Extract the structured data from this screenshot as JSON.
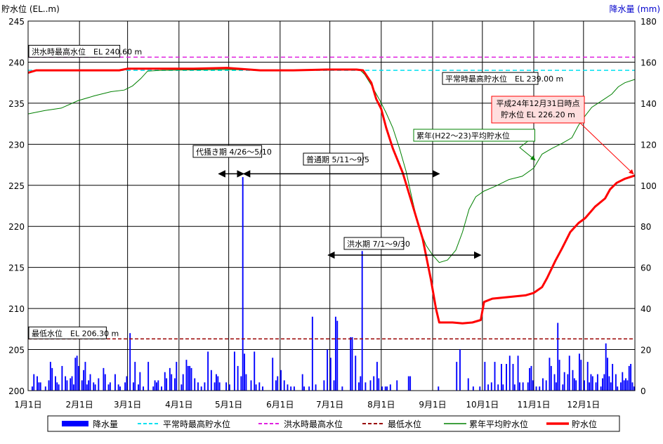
{
  "chart_data": {
    "type": "bar+line",
    "left_axis_title": "貯水位 (EL..m)",
    "right_axis_title": "降水量 (mm)",
    "y_left": {
      "min": 200,
      "max": 245,
      "ticks": [
        200,
        205,
        210,
        215,
        220,
        225,
        230,
        235,
        240,
        245
      ]
    },
    "y_right": {
      "min": 0,
      "max": 180,
      "ticks": [
        0,
        20,
        40,
        60,
        80,
        100,
        120,
        140,
        160,
        180
      ]
    },
    "x_range_days": [
      0,
      366
    ],
    "month_ticks": [
      {
        "day": 0,
        "label": "1月1日"
      },
      {
        "day": 31,
        "label": "2月1日"
      },
      {
        "day": 60,
        "label": "3月1日"
      },
      {
        "day": 91,
        "label": "4月1日"
      },
      {
        "day": 121,
        "label": "5月1日"
      },
      {
        "day": 152,
        "label": "6月1日"
      },
      {
        "day": 182,
        "label": "7月1日"
      },
      {
        "day": 213,
        "label": "8月1日"
      },
      {
        "day": 244,
        "label": "9月1日"
      },
      {
        "day": 274,
        "label": "10月1日"
      },
      {
        "day": 305,
        "label": "11月1日"
      },
      {
        "day": 335,
        "label": "12月1日"
      }
    ],
    "reference_lines": [
      {
        "name": "洪水時最高水位",
        "value": 240.6,
        "color": "#e020e0",
        "dash": "6,4",
        "label": "洪水時最高水位　EL 240.60 m"
      },
      {
        "name": "平常時最高貯水位",
        "value": 239.0,
        "color": "#00e0f0",
        "dash": "6,4",
        "label": "平常時最高貯水位　EL 239.00 m"
      },
      {
        "name": "最低水位",
        "value": 206.3,
        "color": "#990000",
        "dash": "5,3",
        "label": "最低水位　EL 206.30 m"
      }
    ],
    "periods": [
      {
        "label": "代掻き期 4/26～5/10",
        "start_day": 115,
        "end_day": 130
      },
      {
        "label": "普通期 5/11～9/5",
        "start_day": 130,
        "end_day": 248
      },
      {
        "label": "洪水期 7/1～9/30",
        "start_day": 181,
        "end_day": 273
      }
    ],
    "annotations": [
      {
        "text_lines": [
          "平成24年12月31日時点",
          "貯水位 EL 226.20 m"
        ],
        "value": 226.2
      },
      {
        "text_lines": [
          "累年(H22～23)平均貯水位"
        ]
      }
    ],
    "series": [
      {
        "name": "貯水位",
        "type": "line",
        "color": "#ff0000",
        "axis": "left",
        "points": [
          [
            0,
            238.7
          ],
          [
            5,
            239.0
          ],
          [
            20,
            239.0
          ],
          [
            55,
            239.0
          ],
          [
            60,
            239.2
          ],
          [
            100,
            239.2
          ],
          [
            120,
            239.3
          ],
          [
            140,
            239.0
          ],
          [
            160,
            239.0
          ],
          [
            180,
            239.1
          ],
          [
            198,
            239.1
          ],
          [
            202,
            239.0
          ],
          [
            207,
            237.5
          ],
          [
            210,
            235.5
          ],
          [
            213,
            234.3
          ],
          [
            216,
            232.0
          ],
          [
            220,
            229.5
          ],
          [
            226,
            226.5
          ],
          [
            232,
            222.5
          ],
          [
            238,
            218.5
          ],
          [
            243,
            213.5
          ],
          [
            246,
            210.0
          ],
          [
            248,
            208.3
          ],
          [
            256,
            208.3
          ],
          [
            262,
            208.2
          ],
          [
            268,
            208.3
          ],
          [
            273,
            208.6
          ],
          [
            275,
            210.8
          ],
          [
            280,
            211.2
          ],
          [
            290,
            211.4
          ],
          [
            300,
            211.6
          ],
          [
            305,
            211.9
          ],
          [
            310,
            212.6
          ],
          [
            313,
            213.7
          ],
          [
            318,
            215.8
          ],
          [
            322,
            217.3
          ],
          [
            327,
            219.3
          ],
          [
            332,
            220.4
          ],
          [
            336,
            221.0
          ],
          [
            342,
            222.4
          ],
          [
            348,
            223.4
          ],
          [
            351,
            224.5
          ],
          [
            355,
            225.3
          ],
          [
            360,
            225.8
          ],
          [
            366,
            226.2
          ]
        ]
      },
      {
        "name": "累年平均貯水位",
        "type": "line",
        "color": "#008000",
        "axis": "left",
        "points": [
          [
            0,
            233.7
          ],
          [
            10,
            234.1
          ],
          [
            20,
            234.4
          ],
          [
            30,
            235.3
          ],
          [
            40,
            235.9
          ],
          [
            50,
            236.4
          ],
          [
            58,
            236.6
          ],
          [
            63,
            237.1
          ],
          [
            68,
            238.0
          ],
          [
            72,
            238.9
          ],
          [
            80,
            239.0
          ],
          [
            120,
            239.1
          ],
          [
            150,
            239.0
          ],
          [
            180,
            239.1
          ],
          [
            200,
            239.1
          ],
          [
            203,
            238.5
          ],
          [
            207,
            237.2
          ],
          [
            212,
            235.4
          ],
          [
            216,
            233.8
          ],
          [
            220,
            232.0
          ],
          [
            224,
            229.5
          ],
          [
            228,
            226.7
          ],
          [
            232,
            223.0
          ],
          [
            236,
            219.7
          ],
          [
            240,
            217.7
          ],
          [
            244,
            216.5
          ],
          [
            248,
            215.6
          ],
          [
            253,
            215.9
          ],
          [
            258,
            217.1
          ],
          [
            262,
            219.3
          ],
          [
            266,
            222.1
          ],
          [
            270,
            223.6
          ],
          [
            275,
            224.3
          ],
          [
            282,
            224.9
          ],
          [
            290,
            225.7
          ],
          [
            298,
            226.1
          ],
          [
            305,
            227.1
          ],
          [
            310,
            228.8
          ],
          [
            316,
            229.5
          ],
          [
            322,
            230.1
          ],
          [
            328,
            230.8
          ],
          [
            332,
            232.3
          ],
          [
            335,
            233.2
          ],
          [
            340,
            234.5
          ],
          [
            346,
            235.3
          ],
          [
            352,
            236.1
          ],
          [
            356,
            237.0
          ],
          [
            360,
            237.5
          ],
          [
            366,
            237.9
          ]
        ]
      },
      {
        "name": "降水量",
        "type": "bar",
        "color": "#0000ff",
        "axis": "right",
        "points": [
          [
            2,
            2
          ],
          [
            3,
            8
          ],
          [
            5,
            7
          ],
          [
            6,
            4
          ],
          [
            7,
            4
          ],
          [
            10,
            2
          ],
          [
            12,
            5
          ],
          [
            13,
            14
          ],
          [
            14,
            11
          ],
          [
            16,
            7
          ],
          [
            17,
            4
          ],
          [
            18,
            3
          ],
          [
            20,
            12
          ],
          [
            22,
            7
          ],
          [
            23,
            5
          ],
          [
            25,
            6
          ],
          [
            26,
            7
          ],
          [
            27,
            3
          ],
          [
            28,
            16
          ],
          [
            29,
            17
          ],
          [
            30,
            12
          ],
          [
            32,
            5
          ],
          [
            33,
            10
          ],
          [
            34,
            14
          ],
          [
            35,
            3
          ],
          [
            36,
            5
          ],
          [
            37,
            8
          ],
          [
            39,
            4
          ],
          [
            40,
            3
          ],
          [
            42,
            6
          ],
          [
            45,
            11
          ],
          [
            46,
            8
          ],
          [
            48,
            3
          ],
          [
            49,
            4
          ],
          [
            52,
            8
          ],
          [
            54,
            3
          ],
          [
            55,
            2
          ],
          [
            58,
            4
          ],
          [
            59,
            7
          ],
          [
            61,
            28
          ],
          [
            63,
            4
          ],
          [
            64,
            14
          ],
          [
            66,
            3
          ],
          [
            67,
            9
          ],
          [
            69,
            2
          ],
          [
            72,
            14
          ],
          [
            75,
            2
          ],
          [
            76,
            5
          ],
          [
            77,
            4
          ],
          [
            78,
            5
          ],
          [
            80,
            2
          ],
          [
            82,
            9
          ],
          [
            83,
            6
          ],
          [
            85,
            11
          ],
          [
            86,
            8
          ],
          [
            88,
            6
          ],
          [
            89,
            14
          ],
          [
            92,
            3
          ],
          [
            93,
            8
          ],
          [
            95,
            15
          ],
          [
            96,
            12
          ],
          [
            97,
            12
          ],
          [
            98,
            11
          ],
          [
            100,
            6
          ],
          [
            102,
            4
          ],
          [
            104,
            2
          ],
          [
            106,
            4
          ],
          [
            108,
            19
          ],
          [
            110,
            10
          ],
          [
            112,
            4
          ],
          [
            113,
            8
          ],
          [
            114,
            7
          ],
          [
            115,
            4
          ],
          [
            119,
            4
          ],
          [
            121,
            3
          ],
          [
            124,
            19
          ],
          [
            126,
            12
          ],
          [
            128,
            7
          ],
          [
            129,
            104
          ],
          [
            130,
            18
          ],
          [
            131,
            8
          ],
          [
            134,
            5
          ],
          [
            136,
            19
          ],
          [
            137,
            3
          ],
          [
            139,
            4
          ],
          [
            141,
            2
          ],
          [
            147,
            16
          ],
          [
            149,
            5
          ],
          [
            150,
            7
          ],
          [
            152,
            10
          ],
          [
            154,
            5
          ],
          [
            156,
            3
          ],
          [
            158,
            2
          ],
          [
            160,
            2
          ],
          [
            165,
            8
          ],
          [
            166,
            2
          ],
          [
            169,
            2
          ],
          [
            171,
            36
          ],
          [
            173,
            3
          ],
          [
            178,
            5
          ],
          [
            180,
            20
          ],
          [
            182,
            16
          ],
          [
            184,
            5
          ],
          [
            185,
            36
          ],
          [
            186,
            34
          ],
          [
            189,
            2
          ],
          [
            194,
            26
          ],
          [
            195,
            26
          ],
          [
            197,
            17
          ],
          [
            199,
            4
          ],
          [
            200,
            7
          ],
          [
            201,
            68
          ],
          [
            203,
            4
          ],
          [
            206,
            5
          ],
          [
            208,
            7
          ],
          [
            210,
            14
          ],
          [
            211,
            6
          ],
          [
            213,
            2
          ],
          [
            215,
            2
          ],
          [
            216,
            2
          ],
          [
            218,
            3
          ],
          [
            222,
            5
          ],
          [
            229,
            7
          ],
          [
            230,
            7
          ],
          [
            247,
            2
          ],
          [
            258,
            14
          ],
          [
            260,
            20
          ],
          [
            265,
            6
          ],
          [
            268,
            2
          ],
          [
            272,
            2
          ],
          [
            275,
            14
          ],
          [
            277,
            3
          ],
          [
            279,
            4
          ],
          [
            281,
            14
          ],
          [
            283,
            3
          ],
          [
            285,
            13
          ],
          [
            286,
            3
          ],
          [
            288,
            13
          ],
          [
            290,
            17
          ],
          [
            292,
            13
          ],
          [
            293,
            3
          ],
          [
            295,
            17
          ],
          [
            296,
            4
          ],
          [
            298,
            4
          ],
          [
            301,
            4
          ],
          [
            302,
            11
          ],
          [
            303,
            12
          ],
          [
            304,
            5
          ],
          [
            306,
            2
          ],
          [
            308,
            2
          ],
          [
            310,
            6
          ],
          [
            312,
            5
          ],
          [
            314,
            16
          ],
          [
            315,
            12
          ],
          [
            317,
            8
          ],
          [
            318,
            4
          ],
          [
            319,
            33
          ],
          [
            320,
            15
          ],
          [
            322,
            3
          ],
          [
            323,
            9
          ],
          [
            325,
            8
          ],
          [
            326,
            17
          ],
          [
            328,
            10
          ],
          [
            329,
            6
          ],
          [
            330,
            5
          ],
          [
            332,
            18
          ],
          [
            333,
            15
          ],
          [
            335,
            5
          ],
          [
            337,
            14
          ],
          [
            338,
            4
          ],
          [
            339,
            8
          ],
          [
            340,
            7
          ],
          [
            342,
            4
          ],
          [
            343,
            8
          ],
          [
            345,
            2
          ],
          [
            346,
            6
          ],
          [
            347,
            8
          ],
          [
            348,
            23
          ],
          [
            349,
            16
          ],
          [
            350,
            7
          ],
          [
            351,
            4
          ],
          [
            352,
            13
          ],
          [
            354,
            8
          ],
          [
            355,
            2
          ],
          [
            357,
            4
          ],
          [
            358,
            9
          ],
          [
            359,
            5
          ],
          [
            360,
            6
          ],
          [
            361,
            5
          ],
          [
            362,
            12
          ],
          [
            363,
            13
          ],
          [
            364,
            4
          ],
          [
            365,
            2
          ]
        ]
      }
    ],
    "legend": [
      {
        "label": "降水量",
        "type": "bar",
        "color": "#0000ff"
      },
      {
        "label": "平常時最高貯水位",
        "type": "dash",
        "color": "#00e0f0"
      },
      {
        "label": "洪水時最高水位",
        "type": "dash",
        "color": "#e020e0"
      },
      {
        "label": "最低水位",
        "type": "dash",
        "color": "#990000"
      },
      {
        "label": "累年平均貯水位",
        "type": "line",
        "color": "#008000"
      },
      {
        "label": "貯水位",
        "type": "thick",
        "color": "#ff0000"
      }
    ],
    "legend_position": "bottom",
    "grid": true
  }
}
